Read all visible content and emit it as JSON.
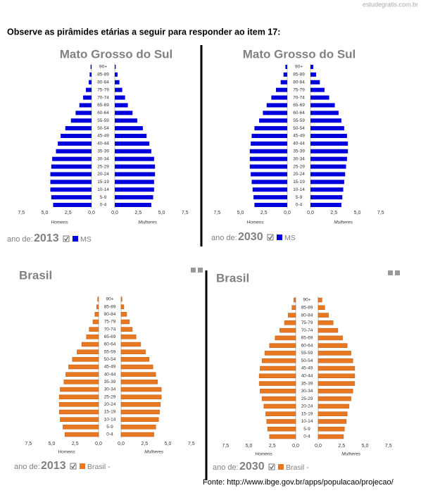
{
  "watermark": "estudegratis.com.br",
  "instruction": "Observe as pirâmides etárias a seguir para responder ao item 17:",
  "source": "Fonte: http://www.ibge.gov.br/apps/populacao/projecao/",
  "chart_data": [
    {
      "type": "pyramid",
      "title": "Mato Grosso do Sul",
      "year_label": "ano de:",
      "year": "2013",
      "categories": [
        "0-4",
        "5-9",
        "10-14",
        "15-19",
        "20-24",
        "25-29",
        "30-34",
        "35-39",
        "40-44",
        "45-49",
        "50-54",
        "55-59",
        "60-64",
        "65-69",
        "70-74",
        "75-79",
        "80-84",
        "85-89",
        "90+"
      ],
      "x_label_left": "Homens",
      "x_label_right": "Mulheres",
      "legend": "MS",
      "xlim": [
        0,
        7.5
      ],
      "xticks": [
        {
          "value": 7.5,
          "label": "7,5"
        },
        {
          "value": 5,
          "label": "5,0"
        },
        {
          "value": 2.5,
          "label": "2,5"
        },
        {
          "value": 0,
          "label": "0,0"
        }
      ],
      "series": [
        {
          "name": "Homens",
          "color": "#0000dd",
          "values": [
            4.1,
            4.3,
            4.4,
            4.4,
            4.4,
            4.3,
            4.2,
            3.8,
            3.6,
            3.3,
            2.8,
            2.2,
            1.7,
            1.3,
            0.9,
            0.6,
            0.3,
            0.2,
            0.1
          ]
        },
        {
          "name": "Mulheres",
          "color": "#0000dd",
          "values": [
            3.9,
            4.1,
            4.2,
            4.2,
            4.3,
            4.3,
            4.2,
            3.9,
            3.7,
            3.4,
            3.0,
            2.4,
            1.9,
            1.4,
            1.1,
            0.8,
            0.5,
            0.3,
            0.1
          ]
        }
      ]
    },
    {
      "type": "pyramid",
      "title": "Mato Grosso do Sul",
      "year_label": "ano de:",
      "year": "2030",
      "categories": [
        "0-4",
        "5-9",
        "10-14",
        "15-19",
        "20-24",
        "25-29",
        "30-34",
        "35-39",
        "40-44",
        "45-49",
        "50-54",
        "55-59",
        "60-64",
        "65-69",
        "70-74",
        "75-79",
        "80-84",
        "85-89",
        "90+"
      ],
      "x_label_left": "Homens",
      "x_label_right": "Mulheres",
      "legend": "MS",
      "xlim": [
        0,
        7.5
      ],
      "xticks": [
        {
          "value": 7.5,
          "label": "7,5"
        },
        {
          "value": 5,
          "label": "5,0"
        },
        {
          "value": 2.5,
          "label": "2,5"
        },
        {
          "value": 0,
          "label": "0,0"
        }
      ],
      "series": [
        {
          "name": "Homens",
          "color": "#0000dd",
          "values": [
            3.5,
            3.6,
            3.7,
            3.8,
            3.9,
            4.0,
            4.0,
            4.0,
            3.9,
            3.8,
            3.5,
            3.0,
            2.6,
            2.2,
            1.7,
            1.2,
            0.7,
            0.4,
            0.2
          ]
        },
        {
          "name": "Mulheres",
          "color": "#0000dd",
          "values": [
            3.3,
            3.4,
            3.5,
            3.6,
            3.7,
            3.8,
            3.9,
            4.0,
            4.0,
            3.9,
            3.6,
            3.3,
            3.0,
            2.6,
            2.0,
            1.5,
            1.0,
            0.6,
            0.3
          ]
        }
      ]
    },
    {
      "type": "pyramid",
      "title": "Brasil",
      "year_label": "ano de:",
      "year": "2013",
      "categories": [
        "0-4",
        "5-9",
        "10-14",
        "15-19",
        "20-24",
        "25-29",
        "30-34",
        "35-39",
        "40-44",
        "45-49",
        "50-54",
        "55-59",
        "60-64",
        "65-69",
        "70-74",
        "75-79",
        "80-84",
        "85-89",
        "90+"
      ],
      "x_label_left": "Homens",
      "x_label_right": "Mulheres",
      "legend": "Brasil -",
      "xlim": [
        0,
        7.5
      ],
      "xticks": [
        {
          "value": 7.5,
          "label": "7,5"
        },
        {
          "value": 5,
          "label": "5,0"
        },
        {
          "value": 2.5,
          "label": "2,5"
        },
        {
          "value": 0,
          "label": "0,0"
        }
      ],
      "series": [
        {
          "name": "Homens",
          "color": "#e87722",
          "values": [
            3.6,
            3.8,
            4.1,
            4.2,
            4.2,
            4.2,
            4.1,
            3.7,
            3.5,
            3.2,
            2.8,
            2.3,
            1.8,
            1.3,
            1.0,
            0.6,
            0.4,
            0.2,
            0.1
          ]
        },
        {
          "name": "Mulheres",
          "color": "#e87722",
          "values": [
            3.5,
            3.7,
            4.0,
            4.1,
            4.2,
            4.3,
            4.3,
            3.9,
            3.7,
            3.4,
            3.0,
            2.6,
            2.1,
            1.6,
            1.2,
            0.9,
            0.6,
            0.3,
            0.1
          ]
        }
      ]
    },
    {
      "type": "pyramid",
      "title": "Brasil",
      "year_label": "ano de:",
      "year": "2030",
      "categories": [
        "0-4",
        "5-9",
        "10-14",
        "15-19",
        "20-24",
        "25-29",
        "30-34",
        "35-39",
        "40-44",
        "45-49",
        "50-54",
        "55-59",
        "60-64",
        "65-69",
        "70-74",
        "75-79",
        "80-84",
        "85-89",
        "90+"
      ],
      "x_label_left": "Homens",
      "x_label_right": "Mulheres",
      "legend": "Brasil -",
      "xlim": [
        0,
        7.5
      ],
      "xticks": [
        {
          "value": 7.5,
          "label": "7,5"
        },
        {
          "value": 5,
          "label": "5,0"
        },
        {
          "value": 2.5,
          "label": "2,5"
        },
        {
          "value": 0,
          "label": "0,0"
        }
      ],
      "series": [
        {
          "name": "Homens",
          "color": "#e87722",
          "values": [
            2.8,
            3.0,
            3.1,
            3.2,
            3.4,
            3.6,
            3.8,
            3.9,
            3.9,
            3.8,
            3.6,
            3.3,
            2.8,
            2.2,
            1.7,
            1.2,
            0.8,
            0.4,
            0.2
          ]
        },
        {
          "name": "Mulheres",
          "color": "#e87722",
          "values": [
            2.7,
            2.8,
            3.0,
            3.1,
            3.3,
            3.5,
            3.7,
            3.9,
            3.9,
            3.9,
            3.7,
            3.5,
            3.1,
            2.6,
            2.1,
            1.6,
            1.1,
            0.7,
            0.4
          ]
        }
      ]
    }
  ]
}
